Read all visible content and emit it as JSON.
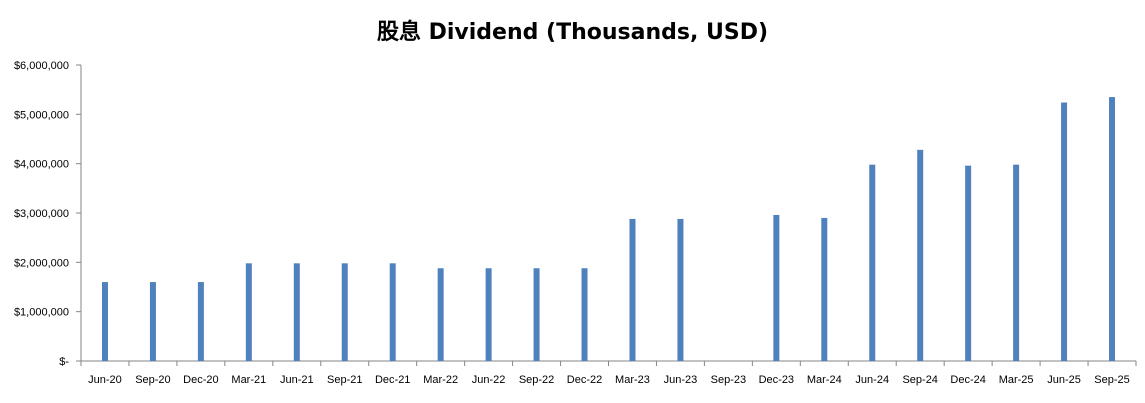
{
  "chart_data": {
    "type": "bar",
    "title": "股息 Dividend (Thousands, USD)",
    "xlabel": "",
    "ylabel": "",
    "categories": [
      "Jun-20",
      "Sep-20",
      "Dec-20",
      "Mar-21",
      "Jun-21",
      "Sep-21",
      "Dec-21",
      "Mar-22",
      "Jun-22",
      "Sep-22",
      "Dec-22",
      "Mar-23",
      "Jun-23",
      "Sep-23",
      "Dec-23",
      "Mar-24",
      "Jun-24",
      "Sep-24",
      "Dec-24",
      "Mar-25",
      "Jun-25",
      "Sep-25"
    ],
    "values": [
      1600000,
      1600000,
      1600000,
      1980000,
      1980000,
      1980000,
      1980000,
      1880000,
      1880000,
      1880000,
      1880000,
      2880000,
      2880000,
      0,
      2960000,
      2900000,
      3980000,
      4280000,
      3960000,
      3980000,
      5240000,
      5350000
    ],
    "ylim": [
      0,
      6000000
    ],
    "yticks": [
      0,
      1000000,
      2000000,
      3000000,
      4000000,
      5000000,
      6000000
    ],
    "ytick_labels": [
      "$-",
      "$1,000,000",
      "$2,000,000",
      "$3,000,000",
      "$4,000,000",
      "$5,000,000",
      "$6,000,000"
    ],
    "bar_color": "#4f81bd",
    "grid": false,
    "legend": "none"
  }
}
